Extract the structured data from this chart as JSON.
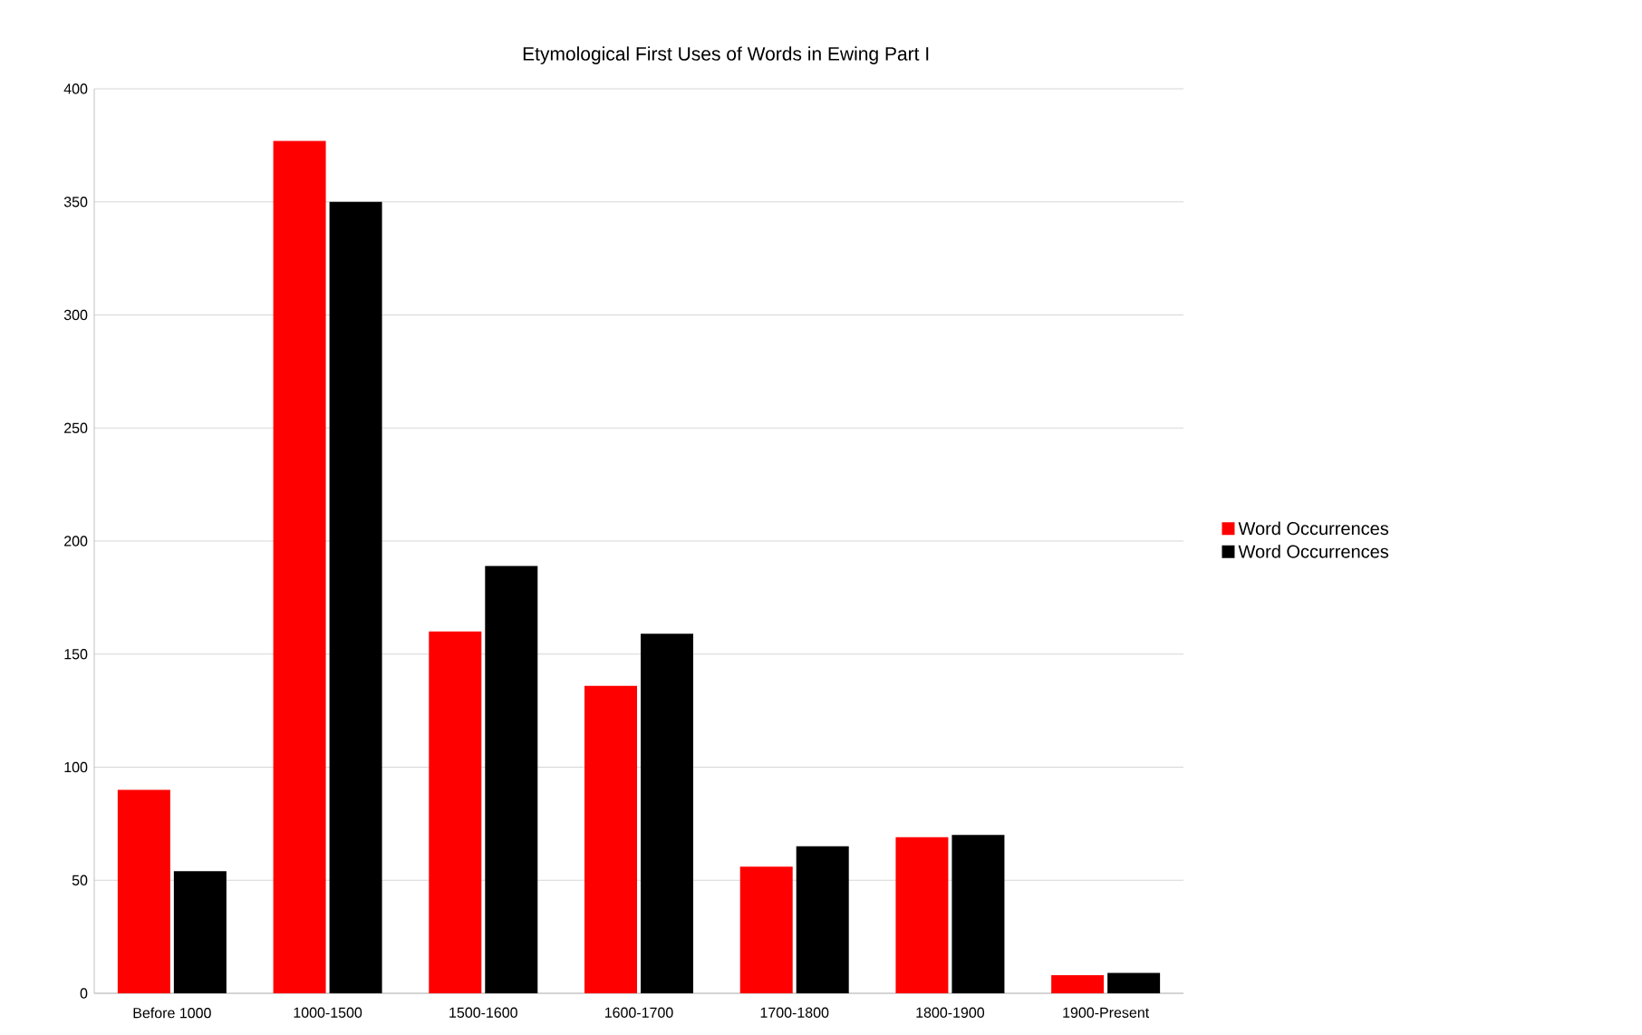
{
  "chart_data": {
    "type": "bar",
    "title": "Etymological First Uses of Words in Ewing Part I",
    "categories": [
      "Before 1000",
      "1000-1500",
      "1500-1600",
      "1600-1700",
      "1700-1800",
      "1800-1900",
      "1900-Present"
    ],
    "series": [
      {
        "name": "Word Occurrences",
        "color": "#ff0000",
        "values": [
          90,
          377,
          160,
          136,
          56,
          69,
          8
        ]
      },
      {
        "name": "Word Occurrences",
        "color": "#000000",
        "values": [
          54,
          350,
          189,
          159,
          65,
          70,
          9
        ]
      }
    ],
    "ylim": [
      0,
      400
    ],
    "yticks": [
      0,
      50,
      100,
      150,
      200,
      250,
      300,
      350,
      400
    ],
    "grid": "y",
    "legend": "right"
  }
}
